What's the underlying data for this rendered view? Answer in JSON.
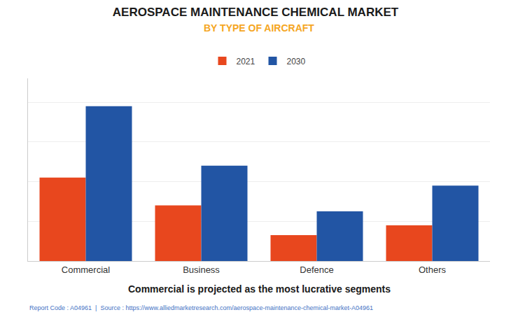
{
  "chart_data": {
    "type": "bar",
    "title": "AEROSPACE MAINTENANCE CHEMICAL MARKET",
    "subtitle": "BY TYPE OF AIRCRAFT",
    "categories": [
      "Commercial",
      "Business",
      "Defence",
      "Others"
    ],
    "series": [
      {
        "name": "2021",
        "color": "#e8471e",
        "values": [
          0.42,
          0.28,
          0.13,
          0.18
        ]
      },
      {
        "name": "2030",
        "color": "#2255a4",
        "values": [
          0.78,
          0.48,
          0.25,
          0.38
        ]
      }
    ],
    "ylim": [
      0,
      0.92
    ],
    "yticks": [
      0,
      0.2,
      0.4,
      0.6,
      0.8
    ],
    "grid": true,
    "legend": "top",
    "tick_labels": "x",
    "annotations": [
      "Commercial is projected as the most lucrative segments",
      "Report Code : A04961  |  Source : https://www.alliedmarketresearch.com/aerospace-maintenance-chemical-market-A04961"
    ]
  }
}
